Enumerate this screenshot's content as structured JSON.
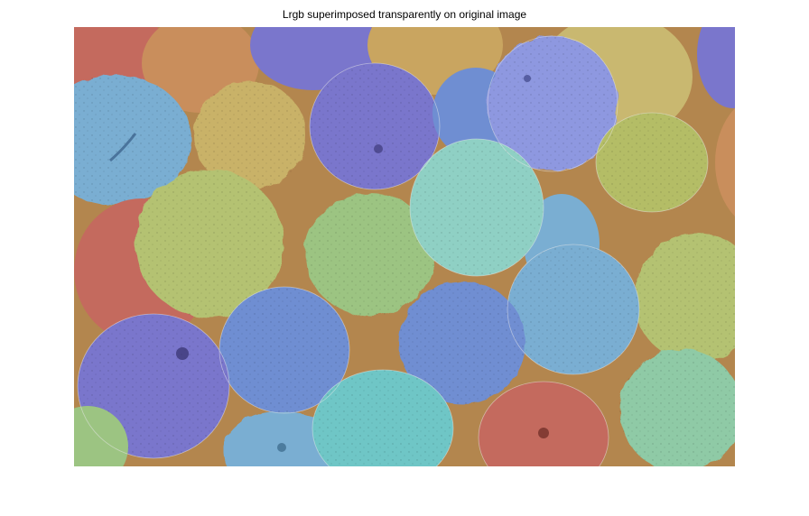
{
  "figure": {
    "title": "Lrgb superimposed transparently on original image"
  },
  "image": {
    "subject": "oranges",
    "background_color": "#b88a52",
    "segment_colors": {
      "red": "#c46a5e",
      "orange": "#c98e5c",
      "yellow": "#c9b267",
      "lime": "#b4c272",
      "green": "#9cc482",
      "mint": "#8fd0b4",
      "cyan": "#6fc6c6",
      "light_blue": "#7aaed2",
      "blue": "#6f8ed2",
      "indigo": "#7a76cc",
      "periwinkle": "#8e98e0"
    }
  }
}
